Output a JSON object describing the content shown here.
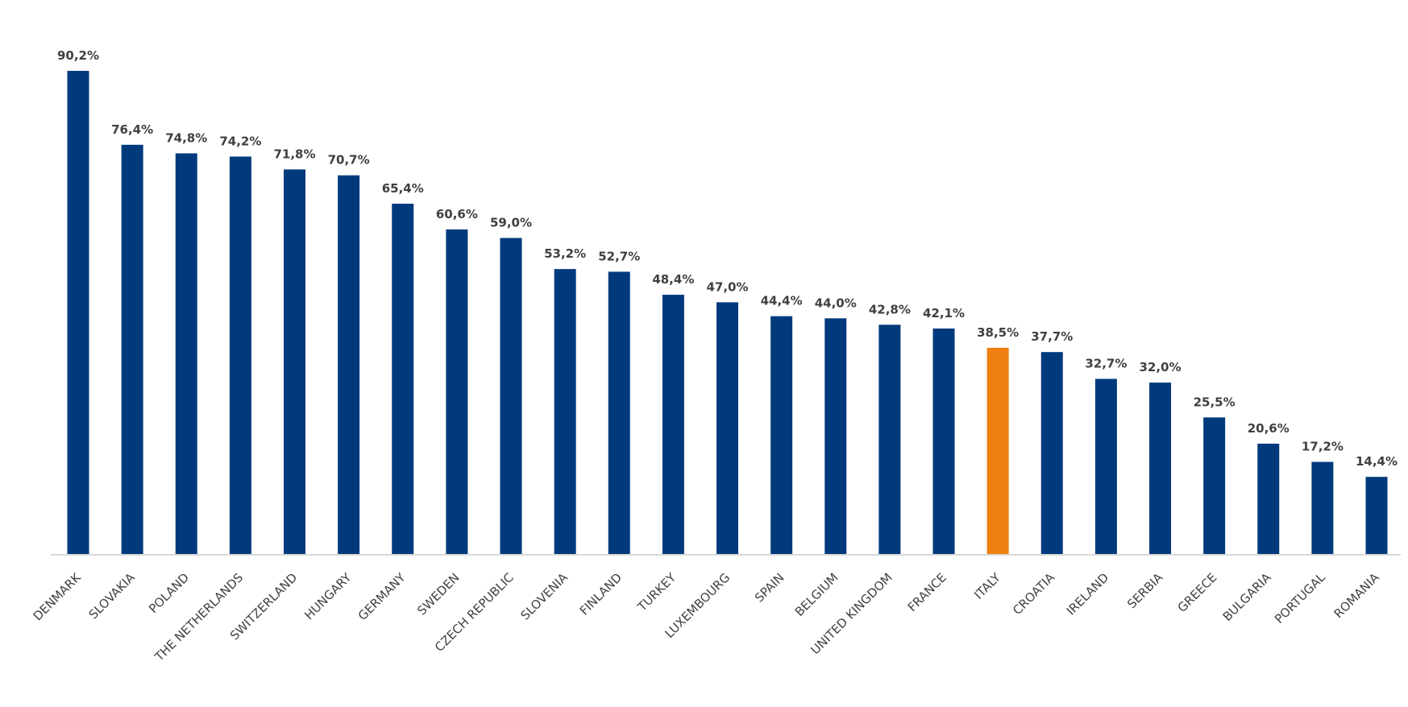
{
  "chart_data": {
    "type": "bar",
    "categories": [
      "DENMARK",
      "SLOVAKIA",
      "POLAND",
      "THE NETHERLANDS",
      "SWITZERLAND",
      "HUNGARY",
      "GERMANY",
      "SWEDEN",
      "CZECH REPUBLIC",
      "SLOVENIA",
      "FINLAND",
      "TURKEY",
      "LUXEMBOURG",
      "SPAIN",
      "BELGIUM",
      "UNITED KINGDOM",
      "FRANCE",
      "ITALY",
      "CROATIA",
      "IRELAND",
      "SERBIA",
      "GREECE",
      "BULGARIA",
      "PORTUGAL",
      "ROMANIA"
    ],
    "values": [
      90.2,
      76.4,
      74.8,
      74.2,
      71.8,
      70.7,
      65.4,
      60.6,
      59.0,
      53.2,
      52.7,
      48.4,
      47.0,
      44.4,
      44.0,
      42.8,
      42.1,
      38.5,
      37.7,
      32.7,
      32.0,
      25.5,
      20.6,
      17.2,
      14.4
    ],
    "labels": [
      "90,2%",
      "76,4%",
      "74,8%",
      "74,2%",
      "71,8%",
      "70,7%",
      "65,4%",
      "60,6%",
      "59,0%",
      "53,2%",
      "52,7%",
      "48,4%",
      "47,0%",
      "44,4%",
      "44,0%",
      "42,8%",
      "42,1%",
      "38,5%",
      "37,7%",
      "32,7%",
      "32,0%",
      "25,5%",
      "20,6%",
      "17,2%",
      "14,4%"
    ],
    "highlight_category": "ITALY",
    "colors": {
      "bar": "#003a7d",
      "highlight": "#ee7f10"
    },
    "title": "",
    "xlabel": "",
    "ylabel": "",
    "ylim": [
      0,
      90.2
    ],
    "grid": false,
    "legend": "none"
  }
}
